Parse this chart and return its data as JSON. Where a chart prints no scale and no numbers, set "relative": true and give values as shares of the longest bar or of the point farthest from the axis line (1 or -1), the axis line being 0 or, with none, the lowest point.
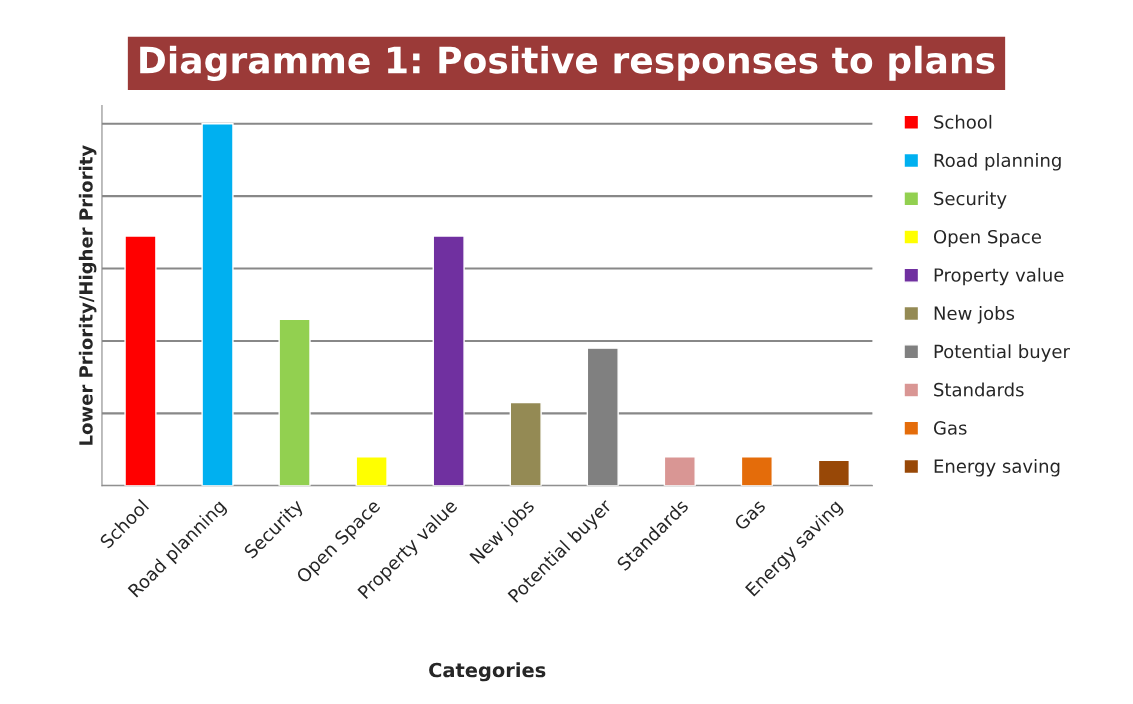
{
  "chart_data": {
    "type": "bar",
    "title": "Diagramme 1: Positive responses to plans",
    "xlabel": "Categories",
    "ylabel": "Lower Priority/Higher Priority",
    "categories": [
      "School",
      "Road planning",
      "Security",
      "Open Space",
      "Property value",
      "New jobs",
      "Potential buyer",
      "Standards",
      "Gas",
      "Energy saving"
    ],
    "series": [
      {
        "name": "School",
        "color": "#ff0000",
        "values": [
          0.69,
          null,
          null,
          null,
          null,
          null,
          null,
          null,
          null,
          null
        ]
      },
      {
        "name": "Road planning",
        "color": "#00b0f0",
        "values": [
          null,
          1,
          null,
          null,
          null,
          null,
          null,
          null,
          null,
          null
        ]
      },
      {
        "name": "Security",
        "color": "#92d050",
        "values": [
          null,
          null,
          0.46,
          null,
          null,
          null,
          null,
          null,
          null,
          null
        ]
      },
      {
        "name": "Open Space",
        "color": "#ffff00",
        "values": [
          null,
          null,
          null,
          0.08,
          null,
          null,
          null,
          null,
          null,
          null
        ]
      },
      {
        "name": "Property value",
        "color": "#7030a0",
        "values": [
          null,
          null,
          null,
          null,
          0.69,
          null,
          null,
          null,
          null,
          null
        ]
      },
      {
        "name": "New jobs",
        "color": "#948a54",
        "values": [
          null,
          null,
          null,
          null,
          null,
          0.23,
          null,
          null,
          null,
          null
        ]
      },
      {
        "name": "Potential buyer",
        "color": "#808080",
        "values": [
          null,
          null,
          null,
          null,
          null,
          null,
          0.38,
          null,
          null,
          null
        ]
      },
      {
        "name": "Standards",
        "color": "#d99694",
        "values": [
          null,
          null,
          null,
          null,
          null,
          null,
          null,
          0.08,
          null,
          null
        ]
      },
      {
        "name": "Gas",
        "color": "#e46c0a",
        "values": [
          null,
          null,
          null,
          null,
          null,
          null,
          null,
          null,
          0.08,
          null
        ]
      },
      {
        "name": "Energy saving",
        "color": "#984807",
        "values": [
          null,
          null,
          null,
          null,
          null,
          null,
          null,
          null,
          null,
          0.07
        ]
      }
    ],
    "relative": true,
    "grid": "y",
    "legend": "right"
  }
}
